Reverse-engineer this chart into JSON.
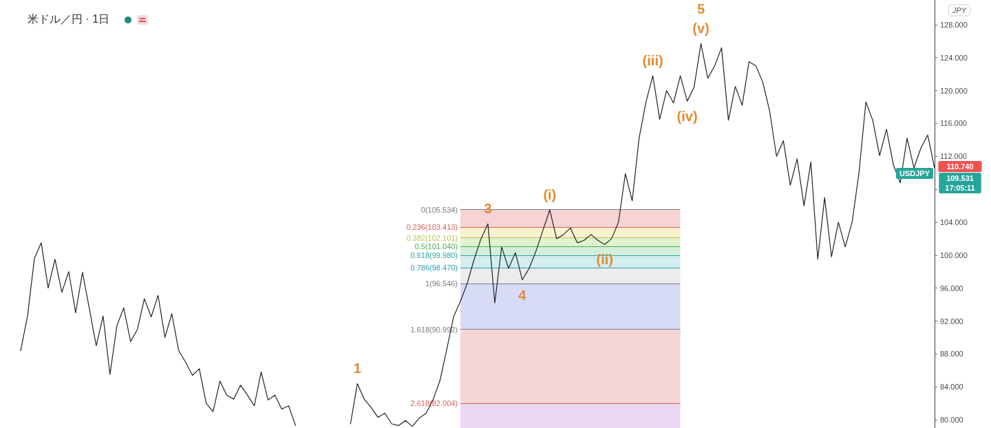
{
  "chart_data": {
    "type": "line",
    "title": "米ドル／円 · 1日",
    "ylabel": "JPY",
    "categories": [
      null,
      null,
      null,
      null,
      null,
      null,
      null,
      null,
      null,
      null,
      null,
      null,
      null,
      null,
      null,
      null,
      null,
      null,
      null,
      null,
      null,
      null,
      null,
      null,
      null,
      null,
      null,
      null,
      null,
      null,
      null,
      null,
      null,
      null,
      null,
      null,
      null,
      null,
      null,
      null,
      null,
      null,
      null,
      null,
      null,
      null,
      null,
      null,
      null,
      null,
      null,
      null,
      null,
      null,
      null,
      null,
      null,
      null,
      null,
      null,
      null,
      null,
      null,
      null,
      null,
      null,
      null,
      null,
      null,
      null,
      null,
      null,
      null,
      null,
      null,
      null,
      null,
      null,
      null,
      null,
      null,
      null,
      null,
      null,
      null,
      null,
      null,
      null,
      null,
      null,
      null,
      null,
      null,
      null,
      null,
      null,
      null,
      null,
      null,
      null,
      null,
      null,
      null,
      null,
      null,
      null,
      null,
      null,
      null,
      null,
      null,
      null,
      null,
      null,
      null,
      null,
      null,
      null,
      null,
      null,
      null,
      null,
      null,
      null,
      null,
      null,
      null,
      null,
      null,
      null,
      null,
      null,
      null,
      null
    ],
    "series": [
      {
        "color": "#222222",
        "values": [
          88.4,
          92.6,
          99.6,
          101.5,
          96.0,
          99.5,
          95.5,
          98.0,
          93.0,
          97.9,
          93.5,
          89.0,
          92.6,
          85.5,
          91.4,
          93.6,
          89.5,
          91.0,
          94.7,
          92.5,
          95.1,
          90.0,
          92.9,
          88.4,
          87.0,
          85.4,
          86.2,
          82.0,
          81.0,
          84.7,
          83.0,
          82.5,
          84.2,
          83.0,
          81.7,
          85.8,
          82.4,
          83.0,
          81.3,
          81.7,
          79.3,
          null,
          null,
          null,
          null,
          null,
          null,
          null,
          null,
          null,
          null,
          null,
          null,
          null,
          null,
          null,
          null,
          null,
          null,
          null,
          null,
          null,
          null,
          null,
          null,
          null,
          null,
          null,
          null,
          null,
          null,
          null,
          null,
          null,
          null,
          null,
          null,
          null,
          null,
          null,
          null,
          null,
          null,
          null,
          null,
          null,
          null,
          null,
          null,
          null,
          null,
          null,
          null,
          null,
          null,
          null,
          null,
          null,
          null,
          null,
          null,
          null,
          null,
          null,
          null,
          null,
          null,
          null,
          null,
          null,
          null,
          null,
          null,
          null,
          null,
          null,
          null,
          null,
          null,
          null,
          null,
          null,
          null,
          null,
          null,
          null,
          null,
          null,
          null,
          null,
          null,
          null,
          null,
          null
        ]
      },
      {
        "color": "#222222",
        "values": [
          null,
          null,
          null,
          null,
          null,
          null,
          null,
          null,
          null,
          null,
          null,
          null,
          null,
          null,
          null,
          null,
          null,
          null,
          null,
          null,
          null,
          null,
          null,
          null,
          null,
          null,
          null,
          null,
          null,
          null,
          null,
          null,
          null,
          null,
          null,
          null,
          null,
          null,
          null,
          null,
          null,
          null,
          null,
          null,
          null,
          null,
          null,
          null,
          79.5,
          84.4,
          82.5,
          81.5,
          80.3,
          80.8,
          79.5,
          79.3,
          79.9,
          79.2,
          80.2,
          80.8,
          82.4,
          84.7,
          88.5,
          92.5,
          94.4,
          96.6,
          99.5,
          102.0,
          103.8,
          94.2,
          101.0,
          98.4,
          100.3,
          97.0,
          98.4,
          100.5,
          103.0,
          105.5,
          102.0,
          102.5,
          103.3,
          101.5,
          101.8,
          102.5,
          101.8,
          101.3,
          102.0,
          104.0,
          109.9,
          106.6,
          114.2,
          118.6,
          121.8,
          116.5,
          120.0,
          118.5,
          121.8,
          118.7,
          120.4,
          125.7,
          121.5,
          123.0,
          125.2,
          116.4,
          120.5,
          118.2,
          123.5,
          123.0,
          121.0,
          117.5,
          112.0,
          113.9,
          108.5,
          111.7,
          106.0,
          111.3,
          99.5,
          107.0,
          99.8,
          104.0,
          101.0,
          104.0,
          110.0,
          118.6,
          116.4,
          112.1,
          115.3,
          111.0,
          108.8,
          114.2,
          110.6,
          113.0,
          114.6,
          110.6
        ]
      }
    ],
    "ylim": [
      79,
      131
    ],
    "yticks": [
      {
        "value": 80,
        "label": "80.000"
      },
      {
        "value": 84,
        "label": "84.000"
      },
      {
        "value": 88,
        "label": "88.000"
      },
      {
        "value": 92,
        "label": "92.000"
      },
      {
        "value": 96,
        "label": "96.000"
      },
      {
        "value": 100,
        "label": "100.000"
      },
      {
        "value": 104,
        "label": "104.000"
      },
      {
        "value": 108,
        "label": null
      },
      {
        "value": 112,
        "label": "112.000"
      },
      {
        "value": 116,
        "label": "116.000"
      },
      {
        "value": 120,
        "label": "120.000"
      },
      {
        "value": 124,
        "label": "124.000"
      },
      {
        "value": 128,
        "label": "128.000"
      }
    ],
    "tick_labels": "y",
    "grid": false,
    "marker": "none",
    "line_style": "solid",
    "ref_lines": [
      {
        "axis": "y",
        "value": 105.534,
        "label": "0(105.534)",
        "color": "#787b86"
      },
      {
        "axis": "y",
        "value": 103.413,
        "label": "0.236(103.413)",
        "color": "#d9605a"
      },
      {
        "axis": "y",
        "value": 102.101,
        "label": "0.382(102.101)",
        "color": "#b3c655"
      },
      {
        "axis": "y",
        "value": 101.04,
        "label": "0.5(101.040)",
        "color": "#4caf50"
      },
      {
        "axis": "y",
        "value": 99.98,
        "label": "0.618(99.980)",
        "color": "#26a69a"
      },
      {
        "axis": "y",
        "value": 98.47,
        "label": "0.786(98.470)",
        "color": "#2a9fb0"
      },
      {
        "axis": "y",
        "value": 96.546,
        "label": "1(96.546)",
        "color": "#787b86"
      },
      {
        "axis": "y",
        "value": 90.992,
        "label": "1.618(90.992)",
        "color": "#787b86"
      },
      {
        "axis": "y",
        "value": 82.004,
        "label": "2.618(82.004)",
        "color": "#d9605a"
      }
    ],
    "bands": [
      {
        "axis": "y",
        "from": 105.534,
        "to": 103.413,
        "color": "#f6d4d4"
      },
      {
        "axis": "y",
        "from": 103.413,
        "to": 102.101,
        "color": "#f9f2cf"
      },
      {
        "axis": "y",
        "from": 102.101,
        "to": 101.04,
        "color": "#e2f2cf"
      },
      {
        "axis": "y",
        "from": 101.04,
        "to": 99.98,
        "color": "#d3efdc"
      },
      {
        "axis": "y",
        "from": 99.98,
        "to": 98.47,
        "color": "#d2eef1"
      },
      {
        "axis": "y",
        "from": 98.47,
        "to": 96.546,
        "color": "#ececec"
      },
      {
        "axis": "y",
        "from": 96.546,
        "to": 90.992,
        "color": "#d8dbf6"
      },
      {
        "axis": "y",
        "from": 90.992,
        "to": 82.004,
        "color": "#f5d6d7"
      },
      {
        "axis": "y",
        "from": 82.004,
        "to": 79,
        "color": "#ecd7f2"
      }
    ],
    "annotations": [
      {
        "text": "1",
        "y": 84.4
      },
      {
        "text": "3",
        "y": 103.8
      },
      {
        "text": "4",
        "y": 97.0
      },
      {
        "text": "(i)",
        "y": 105.5
      },
      {
        "text": "(ii)",
        "y": 101.3
      },
      {
        "text": "(iii)",
        "y": 121.8
      },
      {
        "text": "(iv)",
        "y": 118.7
      },
      {
        "text": "(v)",
        "y": 125.7
      },
      {
        "text": "5",
        "y": 125.7
      },
      "110.740",
      "USDJPY",
      "109.531",
      "17:05:11"
    ]
  }
}
